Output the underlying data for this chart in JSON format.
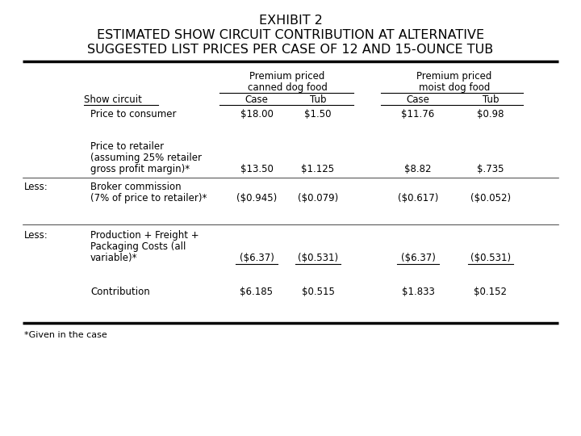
{
  "title_line1": "EXHIBIT 2",
  "title_line2": "ESTIMATED SHOW CIRCUIT CONTRIBUTION AT ALTERNATIVE",
  "title_line3": "SUGGESTED LIST PRICES PER CASE OF 12 AND 15-OUNCE TUB",
  "col_header1_line1": "Premium priced",
  "col_header1_line2": "canned dog food",
  "col_header2_line1": "Premium priced",
  "col_header2_line2": "moist dog food",
  "sub_col_headers": [
    "Case",
    "Tub",
    "Case",
    "Tub"
  ],
  "row_label_left": "Show circuit",
  "rows": [
    {
      "indent_label": "Price to consumer",
      "col1": "$18.00",
      "col2": "$1.50",
      "col3": "$11.76",
      "col4": "$0.98",
      "left_label": "",
      "underline_vals": false
    },
    {
      "indent_label": "Price to retailer\n(assuming 25% retailer\ngross profit margin)*",
      "col1": "$13.50",
      "col2": "$1.125",
      "col3": "$8.82",
      "col4": "$.735",
      "left_label": "",
      "underline_vals": false
    },
    {
      "indent_label": "Broker commission\n(7% of price to retailer)*",
      "col1": "($0.945)",
      "col2": "($0.079)",
      "col3": "($0.617)",
      "col4": "($0.052)",
      "left_label": "Less:",
      "underline_vals": false
    },
    {
      "indent_label": "Production + Freight +\nPackaging Costs (all\nvariable)*",
      "col1": "($6.37)",
      "col2": "($0.531)",
      "col3": "($6.37)",
      "col4": "($0.531)",
      "left_label": "Less:",
      "underline_vals": true
    },
    {
      "indent_label": "Contribution",
      "col1": "$6.185",
      "col2": "$0.515",
      "col3": "$1.833",
      "col4": "$0.152",
      "left_label": "",
      "underline_vals": false
    }
  ],
  "footnote": "*Given in the case",
  "bg_color": "#ffffff",
  "text_color": "#000000",
  "font_size_title": 11.5,
  "font_size_body": 8.5
}
